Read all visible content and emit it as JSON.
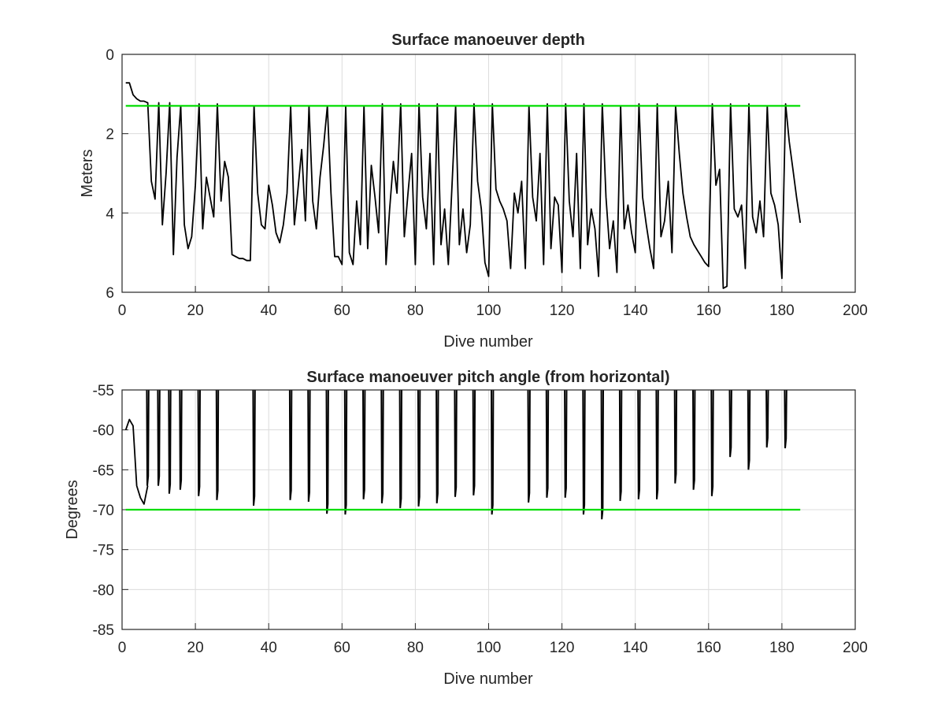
{
  "chart_data": [
    {
      "type": "line",
      "title": "Surface manoeuver depth",
      "xlabel": "Dive number",
      "ylabel": "Meters",
      "xlim": [
        0,
        200
      ],
      "ylim": [
        0,
        6
      ],
      "y_reversed": true,
      "xticks": [
        "0",
        "20",
        "40",
        "60",
        "80",
        "100",
        "120",
        "140",
        "160",
        "180",
        "200"
      ],
      "yticks": [
        "0",
        "2",
        "4",
        "6"
      ],
      "grid": true,
      "series": [
        {
          "color": "#000000",
          "x": [
            1,
            2,
            3,
            4,
            5,
            6,
            7,
            8,
            9,
            10,
            11,
            12,
            13,
            14,
            15,
            16,
            17,
            18,
            19,
            20,
            21,
            22,
            23,
            24,
            25,
            26,
            27,
            28,
            29,
            30,
            31,
            32,
            33,
            34,
            35,
            36,
            37,
            38,
            39,
            40,
            41,
            42,
            43,
            44,
            45,
            46,
            47,
            48,
            49,
            50,
            51,
            52,
            53,
            54,
            55,
            56,
            57,
            58,
            59,
            60,
            61,
            62,
            63,
            64,
            65,
            66,
            67,
            68,
            69,
            70,
            71,
            72,
            73,
            74,
            75,
            76,
            77,
            78,
            79,
            80,
            81,
            82,
            83,
            84,
            85,
            86,
            87,
            88,
            89,
            90,
            91,
            92,
            93,
            94,
            95,
            96,
            97,
            98,
            99,
            100,
            101,
            102,
            103,
            104,
            105,
            106,
            107,
            108,
            109,
            110,
            111,
            112,
            113,
            114,
            115,
            116,
            117,
            118,
            119,
            120,
            121,
            122,
            123,
            124,
            125,
            126,
            127,
            128,
            129,
            130,
            131,
            132,
            133,
            134,
            135,
            136,
            137,
            138,
            139,
            140,
            141,
            142,
            143,
            144,
            145,
            146,
            147,
            148,
            149,
            150,
            151,
            152,
            153,
            154,
            155,
            156,
            157,
            158,
            159,
            160,
            161,
            162,
            163,
            164,
            165,
            166,
            167,
            168,
            169,
            170,
            171,
            172,
            173,
            174,
            175,
            176,
            177,
            178,
            179,
            180,
            181,
            182,
            183,
            184,
            185
          ],
          "y": [
            0.72,
            0.72,
            1.02,
            1.12,
            1.18,
            1.18,
            1.22,
            3.2,
            3.65,
            1.22,
            4.3,
            3.0,
            1.22,
            5.05,
            2.6,
            1.3,
            4.3,
            4.9,
            4.6,
            3.3,
            1.25,
            4.4,
            3.1,
            3.6,
            4.1,
            1.25,
            3.7,
            2.7,
            3.1,
            5.05,
            5.1,
            5.15,
            5.15,
            5.2,
            5.2,
            1.3,
            3.5,
            4.3,
            4.4,
            3.3,
            3.8,
            4.5,
            4.75,
            4.3,
            3.5,
            1.3,
            4.3,
            3.4,
            2.4,
            4.2,
            1.3,
            3.7,
            4.4,
            3.1,
            2.3,
            1.3,
            3.5,
            5.1,
            5.1,
            5.3,
            1.3,
            5.0,
            5.3,
            3.7,
            4.8,
            1.3,
            4.9,
            2.8,
            3.6,
            4.5,
            1.25,
            5.3,
            3.9,
            2.7,
            3.5,
            1.25,
            4.6,
            3.5,
            2.5,
            5.3,
            1.25,
            3.6,
            4.4,
            2.5,
            5.3,
            1.25,
            4.8,
            3.9,
            5.3,
            3.3,
            1.3,
            4.8,
            3.9,
            5.0,
            4.3,
            1.25,
            3.2,
            3.9,
            5.25,
            5.6,
            1.25,
            3.4,
            3.7,
            3.9,
            4.2,
            5.4,
            3.5,
            4.0,
            3.2,
            5.4,
            1.3,
            3.6,
            4.2,
            2.5,
            5.3,
            1.25,
            4.9,
            3.6,
            3.8,
            5.5,
            1.25,
            3.7,
            4.6,
            2.5,
            5.4,
            1.25,
            4.8,
            3.9,
            4.4,
            5.6,
            1.25,
            3.6,
            4.9,
            4.2,
            5.5,
            1.3,
            4.4,
            3.8,
            4.5,
            5.0,
            1.25,
            3.6,
            4.3,
            4.9,
            5.4,
            1.25,
            4.6,
            4.2,
            3.2,
            5.0,
            1.3,
            2.5,
            3.5,
            4.1,
            4.6,
            4.8,
            4.95,
            5.1,
            5.25,
            5.35,
            1.25,
            3.3,
            2.9,
            5.9,
            5.85,
            1.25,
            3.9,
            4.1,
            3.8,
            5.4,
            1.25,
            4.1,
            4.5,
            3.7,
            4.6,
            1.3,
            3.5,
            3.8,
            4.3,
            5.65,
            1.25,
            2.2,
            2.9,
            3.6,
            4.25
          ]
        },
        {
          "color": "#00dd00",
          "x": [
            1,
            185
          ],
          "y": [
            1.3,
            1.3
          ]
        }
      ]
    },
    {
      "type": "line",
      "title": "Surface manoeuver pitch angle (from horizontal)",
      "xlabel": "Dive number",
      "ylabel": "Degrees",
      "xlim": [
        0,
        200
      ],
      "ylim": [
        -85,
        -55
      ],
      "xticks": [
        "0",
        "20",
        "40",
        "60",
        "80",
        "100",
        "120",
        "140",
        "160",
        "180",
        "200"
      ],
      "yticks": [
        "-55",
        "-60",
        "-65",
        "-70",
        "-75",
        "-80",
        "-85"
      ],
      "grid": true,
      "series": [
        {
          "color": "#000000",
          "spikes_to_top": [
            {
              "x": 7,
              "y": -67.0
            },
            {
              "x": 10,
              "y": -67.0
            },
            {
              "x": 13,
              "y": -68.0
            },
            {
              "x": 16,
              "y": -67.5
            },
            {
              "x": 21,
              "y": -68.3
            },
            {
              "x": 26,
              "y": -68.8
            },
            {
              "x": 36,
              "y": -69.5
            },
            {
              "x": 46,
              "y": -68.8
            },
            {
              "x": 51,
              "y": -69.0
            },
            {
              "x": 56,
              "y": -70.5
            },
            {
              "x": 61,
              "y": -70.6
            },
            {
              "x": 66,
              "y": -68.7
            },
            {
              "x": 71,
              "y": -69.2
            },
            {
              "x": 76,
              "y": -69.8
            },
            {
              "x": 81,
              "y": -69.6
            },
            {
              "x": 86,
              "y": -69.2
            },
            {
              "x": 91,
              "y": -68.4
            },
            {
              "x": 96,
              "y": -68.2
            },
            {
              "x": 101,
              "y": -70.6
            },
            {
              "x": 111,
              "y": -69.1
            },
            {
              "x": 116,
              "y": -68.5
            },
            {
              "x": 121,
              "y": -68.5
            },
            {
              "x": 126,
              "y": -70.6
            },
            {
              "x": 131,
              "y": -71.2
            },
            {
              "x": 136,
              "y": -68.9
            },
            {
              "x": 141,
              "y": -68.7
            },
            {
              "x": 146,
              "y": -68.7
            },
            {
              "x": 151,
              "y": -66.7
            },
            {
              "x": 156,
              "y": -67.5
            },
            {
              "x": 161,
              "y": -68.3
            },
            {
              "x": 166,
              "y": -63.4
            },
            {
              "x": 171,
              "y": -65.0
            },
            {
              "x": 176,
              "y": -62.2
            },
            {
              "x": 181,
              "y": -62.3
            }
          ],
          "start_x": [
            1,
            2,
            3,
            4,
            5,
            6,
            7
          ],
          "start_y": [
            -60.0,
            -58.7,
            -59.5,
            -67.0,
            -68.5,
            -69.3,
            -67.0
          ]
        },
        {
          "color": "#00dd00",
          "x": [
            1,
            185
          ],
          "y": [
            -70,
            -70
          ]
        }
      ]
    }
  ]
}
